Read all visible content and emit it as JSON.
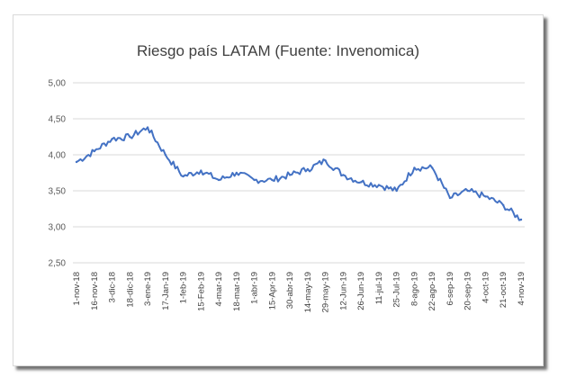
{
  "chart_data": {
    "type": "line",
    "title": "Riesgo país LATAM (Fuente: Invenomica)",
    "xlabel": "",
    "ylabel": "",
    "ylim": [
      2.5,
      5.0
    ],
    "yticks": [
      "5,00",
      "4,50",
      "4,00",
      "3,50",
      "3,00",
      "2,50"
    ],
    "ytick_values": [
      5.0,
      4.5,
      4.0,
      3.5,
      3.0,
      2.5
    ],
    "grid": "horizontal",
    "legend": "none",
    "xticks": [
      "1-nov-18",
      "16-nov-18",
      "3-dic-18",
      "18-dic-18",
      "3-ene-19",
      "17-Jan-19",
      "1-feb-19",
      "15-Feb-19",
      "4-mar-19",
      "18-mar-19",
      "1-abr-19",
      "15-Apr-19",
      "30-abr-19",
      "14-may-19",
      "29-may-19",
      "12-Jun-19",
      "26-Jun-19",
      "11-jul-19",
      "25-Jul-19",
      "8-ago-19",
      "22-ago-19",
      "6-sep-19",
      "20-sep-19",
      "4-oct-19",
      "21-oct-19",
      "4-nov-19"
    ],
    "series": [
      {
        "color": "#4472c4",
        "x": [
          "1-nov-18",
          "16-nov-18",
          "3-dic-18",
          "18-dic-18",
          "3-ene-19",
          "17-Jan-19",
          "1-feb-19",
          "15-Feb-19",
          "4-mar-19",
          "18-mar-19",
          "1-abr-19",
          "15-Apr-19",
          "30-abr-19",
          "14-may-19",
          "29-may-19",
          "12-Jun-19",
          "26-Jun-19",
          "11-jul-19",
          "25-Jul-19",
          "8-ago-19",
          "22-ago-19",
          "6-sep-19",
          "20-sep-19",
          "4-oct-19",
          "21-oct-19",
          "4-nov-19"
        ],
        "values": [
          3.9,
          4.05,
          4.22,
          4.25,
          4.38,
          4.0,
          3.7,
          3.78,
          3.65,
          3.75,
          3.65,
          3.65,
          3.72,
          3.8,
          3.92,
          3.72,
          3.62,
          3.58,
          3.5,
          3.82,
          3.82,
          3.4,
          3.5,
          3.42,
          3.3,
          3.1
        ]
      }
    ]
  }
}
